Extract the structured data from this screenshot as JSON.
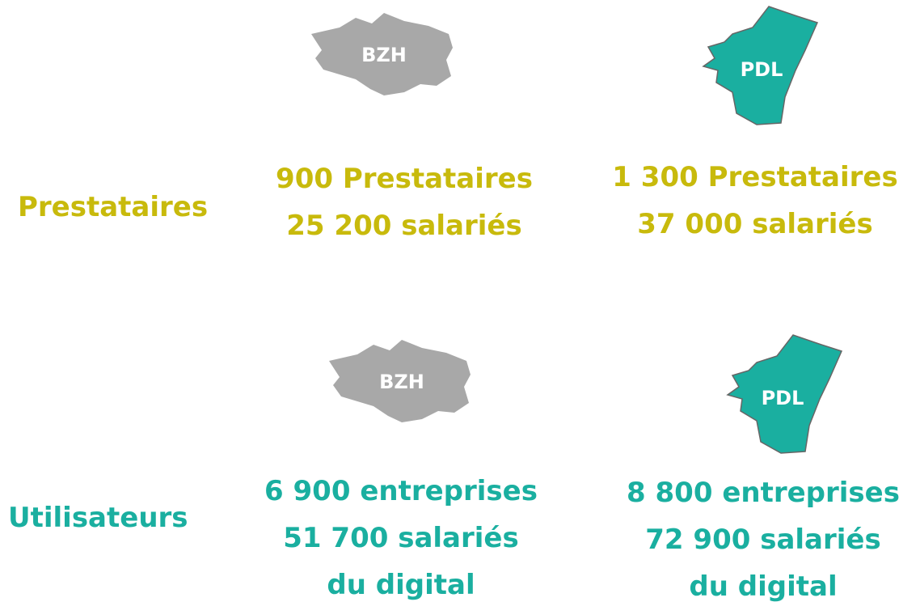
{
  "rows": [
    {
      "label": "Prestataires",
      "regions": [
        {
          "code": "BZH",
          "lines": [
            "900 Prestataires",
            "25 200 salariés"
          ]
        },
        {
          "code": "PDL",
          "lines": [
            "1 300 Prestataires",
            "37 000 salariés"
          ]
        }
      ]
    },
    {
      "label": "Utilisateurs",
      "regions": [
        {
          "code": "BZH",
          "lines": [
            "6 900 entreprises",
            "51 700 salariés",
            "du digital"
          ]
        },
        {
          "code": "PDL",
          "lines": [
            "8 800 entreprises",
            "72 900 salariés",
            "du digital"
          ]
        }
      ]
    }
  ]
}
